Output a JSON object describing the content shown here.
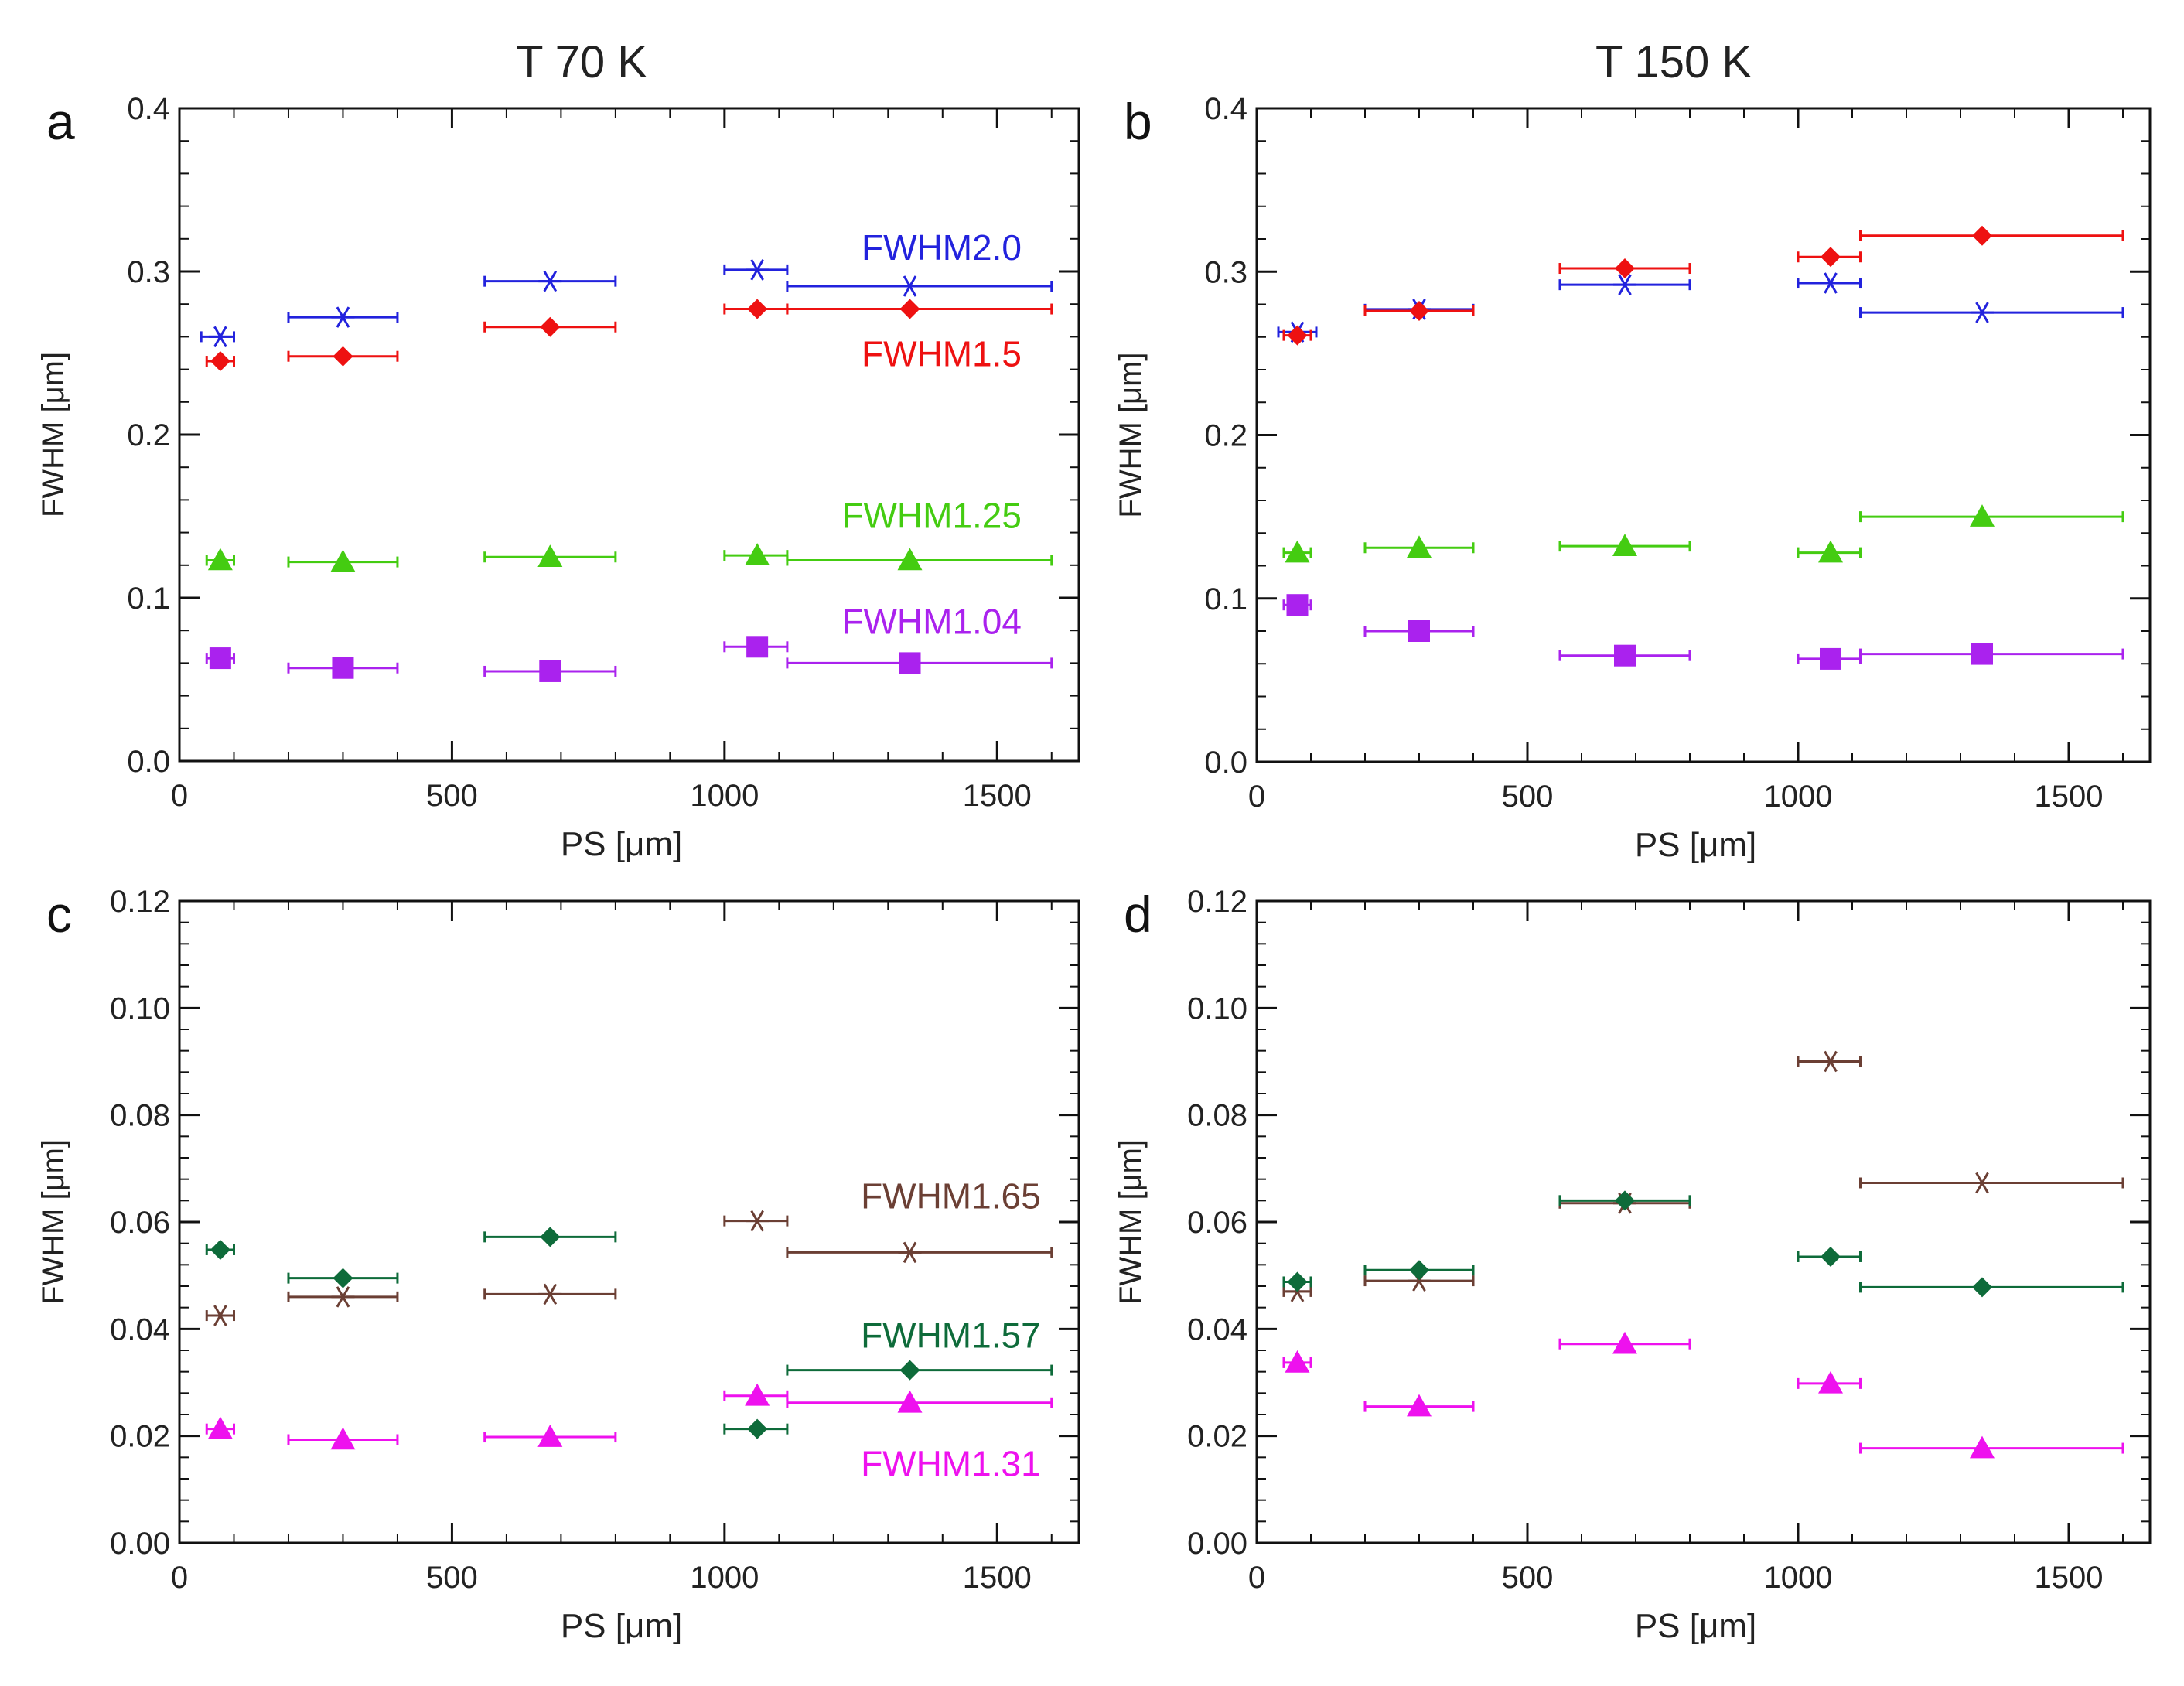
{
  "figure": {
    "column_titles": [
      "T 70 K",
      "T 150 K"
    ]
  },
  "colors": {
    "FWHM2.0": "#2222dd",
    "FWHM1.5": "#ee1111",
    "FWHM1.25": "#44cc11",
    "FWHM1.04": "#aa22ee",
    "FWHM1.65": "#6b3f34",
    "FWHM1.57": "#0e6b3a",
    "FWHM1.31": "#ee11ee"
  },
  "chart_data": [
    {
      "panel": "a",
      "type": "scatter",
      "title": "T 70 K",
      "xlabel": "PS [μm]",
      "ylabel": "FWHM [μm]",
      "xlim": [
        0,
        1650
      ],
      "ylim": [
        0.0,
        0.4
      ],
      "xticks": [
        0,
        500,
        1000,
        1500
      ],
      "xtick_labels": [
        "0",
        "500",
        "1000",
        "1500"
      ],
      "yticks": [
        0.0,
        0.1,
        0.2,
        0.3,
        0.4
      ],
      "ytick_labels": [
        "0.0",
        "0.1",
        "0.2",
        "0.3",
        "0.4"
      ],
      "labels": [
        {
          "text": "FWHM2.0",
          "series": "FWHM2.0",
          "x": 1545,
          "y": 0.307
        },
        {
          "text": "FWHM1.5",
          "series": "FWHM1.5",
          "x": 1545,
          "y": 0.242
        },
        {
          "text": "FWHM1.25",
          "series": "FWHM1.25",
          "x": 1545,
          "y": 0.143
        },
        {
          "text": "FWHM1.04",
          "series": "FWHM1.04",
          "x": 1545,
          "y": 0.078
        }
      ],
      "series": [
        {
          "name": "FWHM2.0",
          "marker": "asterisk",
          "points": [
            {
              "x": 75,
              "y": 0.26,
              "xlo": 40,
              "xhi": 100
            },
            {
              "x": 300,
              "y": 0.272,
              "xlo": 200,
              "xhi": 400
            },
            {
              "x": 680,
              "y": 0.294,
              "xlo": 560,
              "xhi": 800
            },
            {
              "x": 1060,
              "y": 0.301,
              "xlo": 1000,
              "xhi": 1115
            },
            {
              "x": 1340,
              "y": 0.291,
              "xlo": 1115,
              "xhi": 1600
            }
          ]
        },
        {
          "name": "FWHM1.5",
          "marker": "diamond",
          "points": [
            {
              "x": 75,
              "y": 0.245,
              "xlo": 50,
              "xhi": 100
            },
            {
              "x": 300,
              "y": 0.248,
              "xlo": 200,
              "xhi": 400
            },
            {
              "x": 680,
              "y": 0.266,
              "xlo": 560,
              "xhi": 800
            },
            {
              "x": 1060,
              "y": 0.277,
              "xlo": 1000,
              "xhi": 1115
            },
            {
              "x": 1340,
              "y": 0.277,
              "xlo": 1115,
              "xhi": 1600
            }
          ]
        },
        {
          "name": "FWHM1.25",
          "marker": "triangle",
          "points": [
            {
              "x": 75,
              "y": 0.123,
              "xlo": 50,
              "xhi": 100
            },
            {
              "x": 300,
              "y": 0.122,
              "xlo": 200,
              "xhi": 400
            },
            {
              "x": 680,
              "y": 0.125,
              "xlo": 560,
              "xhi": 800
            },
            {
              "x": 1060,
              "y": 0.126,
              "xlo": 1000,
              "xhi": 1115
            },
            {
              "x": 1340,
              "y": 0.123,
              "xlo": 1115,
              "xhi": 1600
            }
          ]
        },
        {
          "name": "FWHM1.04",
          "marker": "square",
          "points": [
            {
              "x": 75,
              "y": 0.063,
              "xlo": 50,
              "xhi": 100
            },
            {
              "x": 300,
              "y": 0.057,
              "xlo": 200,
              "xhi": 400
            },
            {
              "x": 680,
              "y": 0.055,
              "xlo": 560,
              "xhi": 800
            },
            {
              "x": 1060,
              "y": 0.07,
              "xlo": 1000,
              "xhi": 1115
            },
            {
              "x": 1340,
              "y": 0.06,
              "xlo": 1115,
              "xhi": 1600
            }
          ]
        }
      ]
    },
    {
      "panel": "b",
      "type": "scatter",
      "title": "T 150 K",
      "xlabel": "PS [μm]",
      "ylabel": "FWHM [μm]",
      "xlim": [
        0,
        1650
      ],
      "ylim": [
        0.0,
        0.4
      ],
      "xticks": [
        0,
        500,
        1000,
        1500
      ],
      "xtick_labels": [
        "0",
        "500",
        "1000",
        "1500"
      ],
      "yticks": [
        0.0,
        0.1,
        0.2,
        0.3,
        0.4
      ],
      "ytick_labels": [
        "0.0",
        "0.1",
        "0.2",
        "0.3",
        "0.4"
      ],
      "labels": [],
      "series": [
        {
          "name": "FWHM2.0",
          "marker": "asterisk",
          "points": [
            {
              "x": 75,
              "y": 0.263,
              "xlo": 40,
              "xhi": 110
            },
            {
              "x": 300,
              "y": 0.277,
              "xlo": 200,
              "xhi": 400
            },
            {
              "x": 680,
              "y": 0.292,
              "xlo": 560,
              "xhi": 800
            },
            {
              "x": 1060,
              "y": 0.293,
              "xlo": 1000,
              "xhi": 1115
            },
            {
              "x": 1340,
              "y": 0.275,
              "xlo": 1115,
              "xhi": 1600
            }
          ]
        },
        {
          "name": "FWHM1.5",
          "marker": "diamond",
          "points": [
            {
              "x": 75,
              "y": 0.261,
              "xlo": 50,
              "xhi": 100
            },
            {
              "x": 300,
              "y": 0.276,
              "xlo": 200,
              "xhi": 400
            },
            {
              "x": 680,
              "y": 0.302,
              "xlo": 560,
              "xhi": 800
            },
            {
              "x": 1060,
              "y": 0.309,
              "xlo": 1000,
              "xhi": 1115
            },
            {
              "x": 1340,
              "y": 0.322,
              "xlo": 1115,
              "xhi": 1600
            }
          ]
        },
        {
          "name": "FWHM1.25",
          "marker": "triangle",
          "points": [
            {
              "x": 75,
              "y": 0.128,
              "xlo": 50,
              "xhi": 100
            },
            {
              "x": 300,
              "y": 0.131,
              "xlo": 200,
              "xhi": 400
            },
            {
              "x": 680,
              "y": 0.132,
              "xlo": 560,
              "xhi": 800
            },
            {
              "x": 1060,
              "y": 0.128,
              "xlo": 1000,
              "xhi": 1115
            },
            {
              "x": 1340,
              "y": 0.15,
              "xlo": 1115,
              "xhi": 1600
            }
          ]
        },
        {
          "name": "FWHM1.04",
          "marker": "square",
          "points": [
            {
              "x": 75,
              "y": 0.096,
              "xlo": 50,
              "xhi": 100
            },
            {
              "x": 300,
              "y": 0.08,
              "xlo": 200,
              "xhi": 400
            },
            {
              "x": 680,
              "y": 0.065,
              "xlo": 560,
              "xhi": 800
            },
            {
              "x": 1060,
              "y": 0.063,
              "xlo": 1000,
              "xhi": 1115
            },
            {
              "x": 1340,
              "y": 0.066,
              "xlo": 1115,
              "xhi": 1600
            }
          ]
        }
      ]
    },
    {
      "panel": "c",
      "type": "scatter",
      "title": "",
      "xlabel": "PS [μm]",
      "ylabel": "FWHM [μm]",
      "xlim": [
        0,
        1650
      ],
      "ylim": [
        0.0,
        0.12
      ],
      "xticks": [
        0,
        500,
        1000,
        1500
      ],
      "xtick_labels": [
        "0",
        "500",
        "1000",
        "1500"
      ],
      "yticks": [
        0.0,
        0.02,
        0.04,
        0.06,
        0.08,
        0.1,
        0.12
      ],
      "ytick_labels": [
        "0.00",
        "0.02",
        "0.04",
        "0.06",
        "0.08",
        "0.10",
        "0.12"
      ],
      "labels": [
        {
          "text": "FWHM1.65",
          "series": "FWHM1.65",
          "x": 1580,
          "y": 0.0625
        },
        {
          "text": "FWHM1.57",
          "series": "FWHM1.57",
          "x": 1580,
          "y": 0.0365
        },
        {
          "text": "FWHM1.31",
          "series": "FWHM1.31",
          "x": 1580,
          "y": 0.0125
        }
      ],
      "series": [
        {
          "name": "FWHM1.65",
          "marker": "asterisk",
          "points": [
            {
              "x": 75,
              "y": 0.0425,
              "xlo": 50,
              "xhi": 100
            },
            {
              "x": 300,
              "y": 0.046,
              "xlo": 200,
              "xhi": 400
            },
            {
              "x": 680,
              "y": 0.0465,
              "xlo": 560,
              "xhi": 800
            },
            {
              "x": 1060,
              "y": 0.0602,
              "xlo": 1000,
              "xhi": 1115
            },
            {
              "x": 1340,
              "y": 0.0543,
              "xlo": 1115,
              "xhi": 1600
            }
          ]
        },
        {
          "name": "FWHM1.57",
          "marker": "diamond",
          "points": [
            {
              "x": 75,
              "y": 0.0548,
              "xlo": 50,
              "xhi": 100
            },
            {
              "x": 300,
              "y": 0.0495,
              "xlo": 200,
              "xhi": 400
            },
            {
              "x": 680,
              "y": 0.0572,
              "xlo": 560,
              "xhi": 800
            },
            {
              "x": 1060,
              "y": 0.0213,
              "xlo": 1000,
              "xhi": 1115
            },
            {
              "x": 1340,
              "y": 0.0323,
              "xlo": 1115,
              "xhi": 1600
            }
          ]
        },
        {
          "name": "FWHM1.31",
          "marker": "triangle",
          "points": [
            {
              "x": 75,
              "y": 0.0213,
              "xlo": 50,
              "xhi": 100
            },
            {
              "x": 300,
              "y": 0.0193,
              "xlo": 200,
              "xhi": 400
            },
            {
              "x": 680,
              "y": 0.0198,
              "xlo": 560,
              "xhi": 800
            },
            {
              "x": 1060,
              "y": 0.0275,
              "xlo": 1000,
              "xhi": 1115
            },
            {
              "x": 1340,
              "y": 0.0262,
              "xlo": 1115,
              "xhi": 1600
            }
          ]
        }
      ]
    },
    {
      "panel": "d",
      "type": "scatter",
      "title": "",
      "xlabel": "PS [μm]",
      "ylabel": "FWHM [μm]",
      "xlim": [
        0,
        1650
      ],
      "ylim": [
        0.0,
        0.12
      ],
      "xticks": [
        0,
        500,
        1000,
        1500
      ],
      "xtick_labels": [
        "0",
        "500",
        "1000",
        "1500"
      ],
      "yticks": [
        0.0,
        0.02,
        0.04,
        0.06,
        0.08,
        0.1,
        0.12
      ],
      "ytick_labels": [
        "0.00",
        "0.02",
        "0.04",
        "0.06",
        "0.08",
        "0.10",
        "0.12"
      ],
      "labels": [],
      "series": [
        {
          "name": "FWHM1.65",
          "marker": "asterisk",
          "points": [
            {
              "x": 75,
              "y": 0.047,
              "xlo": 50,
              "xhi": 100
            },
            {
              "x": 300,
              "y": 0.049,
              "xlo": 200,
              "xhi": 400
            },
            {
              "x": 680,
              "y": 0.0635,
              "xlo": 560,
              "xhi": 800
            },
            {
              "x": 1060,
              "y": 0.09,
              "xlo": 1000,
              "xhi": 1115
            },
            {
              "x": 1340,
              "y": 0.0673,
              "xlo": 1115,
              "xhi": 1600
            }
          ]
        },
        {
          "name": "FWHM1.57",
          "marker": "diamond",
          "points": [
            {
              "x": 75,
              "y": 0.0488,
              "xlo": 50,
              "xhi": 100
            },
            {
              "x": 300,
              "y": 0.051,
              "xlo": 200,
              "xhi": 400
            },
            {
              "x": 680,
              "y": 0.064,
              "xlo": 560,
              "xhi": 800
            },
            {
              "x": 1060,
              "y": 0.0535,
              "xlo": 1000,
              "xhi": 1115
            },
            {
              "x": 1340,
              "y": 0.0478,
              "xlo": 1115,
              "xhi": 1600
            }
          ]
        },
        {
          "name": "FWHM1.31",
          "marker": "triangle",
          "points": [
            {
              "x": 75,
              "y": 0.0337,
              "xlo": 50,
              "xhi": 100
            },
            {
              "x": 300,
              "y": 0.0255,
              "xlo": 200,
              "xhi": 400
            },
            {
              "x": 680,
              "y": 0.0372,
              "xlo": 560,
              "xhi": 800
            },
            {
              "x": 1060,
              "y": 0.0298,
              "xlo": 1000,
              "xhi": 1115
            },
            {
              "x": 1340,
              "y": 0.0177,
              "xlo": 1115,
              "xhi": 1600
            }
          ]
        }
      ]
    }
  ]
}
